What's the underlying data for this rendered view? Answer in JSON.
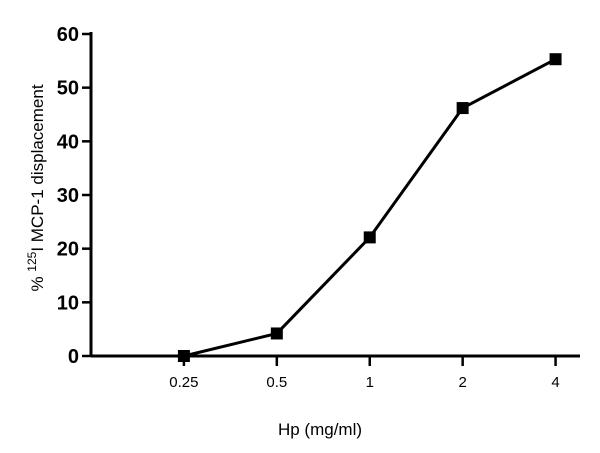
{
  "chart_data": {
    "type": "line",
    "xlabel": "Hp (mg/ml)",
    "ylabel_parts": [
      "% ",
      "125",
      "I MCP-1 displacement"
    ],
    "xlim": [
      0.125,
      4.8
    ],
    "ylim": [
      0,
      60
    ],
    "x_ticks": [
      {
        "value": 0.25,
        "label": "0.25"
      },
      {
        "value": 0.5,
        "label": "0.5"
      },
      {
        "value": 1,
        "label": "1"
      },
      {
        "value": 2,
        "label": "2"
      },
      {
        "value": 4,
        "label": "4"
      }
    ],
    "y_ticks": [
      0,
      10,
      20,
      30,
      40,
      50,
      60
    ],
    "series": [
      {
        "x": [
          0.25,
          0.5,
          1,
          2,
          4
        ],
        "y": [
          0,
          4.2,
          22.1,
          46.2,
          55.3
        ],
        "marker": "square",
        "color": "#000000"
      }
    ],
    "grid": false,
    "legend": "none"
  }
}
